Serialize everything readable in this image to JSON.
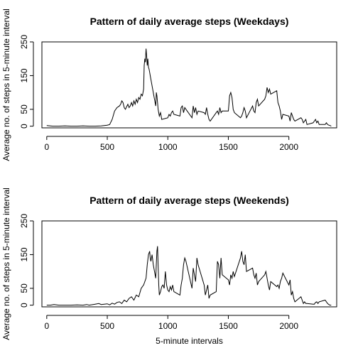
{
  "chart_data": [
    {
      "type": "line",
      "title": "Pattern of daily average steps (Weekdays)",
      "xlabel": "",
      "ylabel": "Average no. of steps in 5-minute interval",
      "xlim": [
        -40,
        2395
      ],
      "ylim": [
        -5,
        250
      ],
      "xticks": [
        "0",
        "500",
        "1000",
        "1500",
        "2000"
      ],
      "yticks": [
        "0",
        "50",
        "150",
        "250"
      ],
      "grid": false,
      "series": [
        {
          "color": "#000000",
          "x": [
            0,
            50,
            100,
            150,
            200,
            250,
            300,
            350,
            400,
            450,
            500,
            520,
            540,
            560,
            580,
            600,
            610,
            620,
            630,
            640,
            650,
            660,
            670,
            680,
            690,
            700,
            710,
            720,
            730,
            740,
            750,
            760,
            770,
            780,
            790,
            800,
            805,
            810,
            815,
            820,
            825,
            830,
            835,
            840,
            845,
            850,
            855,
            900,
            905,
            910,
            915,
            920,
            930,
            940,
            950,
            1000,
            1010,
            1020,
            1030,
            1040,
            1050,
            1100,
            1110,
            1120,
            1130,
            1140,
            1150,
            1200,
            1210,
            1220,
            1230,
            1240,
            1250,
            1300,
            1310,
            1320,
            1330,
            1340,
            1350,
            1400,
            1410,
            1420,
            1430,
            1440,
            1450,
            1500,
            1510,
            1520,
            1530,
            1540,
            1550,
            1600,
            1610,
            1620,
            1630,
            1640,
            1650,
            1700,
            1710,
            1720,
            1730,
            1740,
            1750,
            1800,
            1810,
            1820,
            1830,
            1840,
            1850,
            1900,
            1910,
            1920,
            1930,
            1940,
            1950,
            2000,
            2010,
            2020,
            2030,
            2040,
            2050,
            2100,
            2110,
            2120,
            2130,
            2140,
            2150,
            2200,
            2210,
            2220,
            2230,
            2240,
            2250,
            2300,
            2310,
            2320,
            2330,
            2340,
            2350
          ],
          "y": [
            2,
            0,
            0,
            1,
            0,
            0,
            1,
            0,
            0,
            1,
            3,
            5,
            20,
            45,
            55,
            60,
            65,
            75,
            70,
            55,
            50,
            58,
            65,
            55,
            60,
            70,
            60,
            75,
            65,
            80,
            70,
            85,
            80,
            95,
            90,
            110,
            180,
            200,
            190,
            230,
            210,
            180,
            200,
            175,
            170,
            160,
            150,
            60,
            100,
            90,
            70,
            50,
            30,
            40,
            20,
            25,
            35,
            30,
            40,
            45,
            35,
            30,
            55,
            60,
            40,
            55,
            50,
            25,
            60,
            40,
            55,
            35,
            45,
            40,
            35,
            55,
            35,
            20,
            15,
            40,
            45,
            35,
            55,
            40,
            45,
            45,
            90,
            100,
            85,
            50,
            40,
            25,
            30,
            40,
            55,
            45,
            25,
            60,
            45,
            40,
            70,
            80,
            60,
            80,
            90,
            115,
            100,
            110,
            95,
            105,
            70,
            60,
            45,
            20,
            35,
            30,
            15,
            40,
            30,
            20,
            15,
            25,
            20,
            10,
            15,
            20,
            5,
            10,
            15,
            20,
            10,
            15,
            5,
            5,
            10,
            5,
            3,
            2,
            0
          ]
        }
      ]
    },
    {
      "type": "line",
      "title": "Pattern of daily average steps (Weekends)",
      "xlabel": "5-minute intervals",
      "ylabel": "Average no. of steps in 5-minute interval",
      "xlim": [
        -40,
        2395
      ],
      "ylim": [
        -5,
        250
      ],
      "xticks": [
        "0",
        "500",
        "1000",
        "1500",
        "2000"
      ],
      "yticks": [
        "0",
        "50",
        "150",
        "250"
      ],
      "grid": false,
      "series": [
        {
          "color": "#000000",
          "x": [
            0,
            30,
            60,
            100,
            150,
            200,
            250,
            300,
            330,
            350,
            400,
            430,
            450,
            500,
            520,
            540,
            560,
            580,
            600,
            620,
            640,
            660,
            680,
            700,
            720,
            740,
            760,
            780,
            800,
            820,
            830,
            840,
            850,
            855,
            860,
            870,
            880,
            890,
            900,
            910,
            915,
            920,
            925,
            930,
            940,
            950,
            960,
            970,
            980,
            990,
            1000,
            1010,
            1020,
            1030,
            1040,
            1050,
            1100,
            1110,
            1120,
            1130,
            1140,
            1150,
            1200,
            1210,
            1220,
            1230,
            1240,
            1250,
            1300,
            1310,
            1320,
            1330,
            1340,
            1350,
            1400,
            1410,
            1420,
            1430,
            1440,
            1450,
            1500,
            1510,
            1520,
            1530,
            1540,
            1550,
            1600,
            1610,
            1620,
            1630,
            1640,
            1650,
            1700,
            1710,
            1720,
            1730,
            1740,
            1750,
            1800,
            1810,
            1820,
            1830,
            1840,
            1850,
            1900,
            1910,
            1920,
            1930,
            1940,
            1950,
            2000,
            2010,
            2020,
            2030,
            2040,
            2050,
            2100,
            2110,
            2120,
            2130,
            2140,
            2150,
            2200,
            2210,
            2220,
            2230,
            2240,
            2250,
            2300,
            2310,
            2320,
            2330,
            2340,
            2350
          ],
          "y": [
            0,
            0,
            2,
            0,
            0,
            0,
            1,
            0,
            2,
            0,
            3,
            5,
            2,
            4,
            1,
            6,
            3,
            8,
            10,
            5,
            15,
            10,
            20,
            25,
            15,
            30,
            25,
            50,
            60,
            80,
            120,
            150,
            160,
            140,
            130,
            150,
            120,
            100,
            80,
            160,
            175,
            120,
            60,
            30,
            40,
            55,
            60,
            50,
            100,
            60,
            45,
            40,
            55,
            45,
            60,
            40,
            30,
            60,
            80,
            120,
            140,
            130,
            50,
            110,
            90,
            70,
            140,
            120,
            60,
            30,
            45,
            60,
            20,
            30,
            40,
            130,
            120,
            80,
            140,
            90,
            75,
            60,
            90,
            80,
            100,
            85,
            140,
            160,
            130,
            120,
            150,
            100,
            110,
            90,
            80,
            95,
            60,
            70,
            90,
            100,
            80,
            60,
            45,
            70,
            55,
            60,
            50,
            70,
            80,
            95,
            60,
            75,
            30,
            40,
            20,
            10,
            25,
            15,
            5,
            10,
            5,
            5,
            3,
            3,
            8,
            10,
            5,
            10,
            15,
            10,
            5,
            2,
            0,
            0
          ]
        }
      ]
    }
  ]
}
